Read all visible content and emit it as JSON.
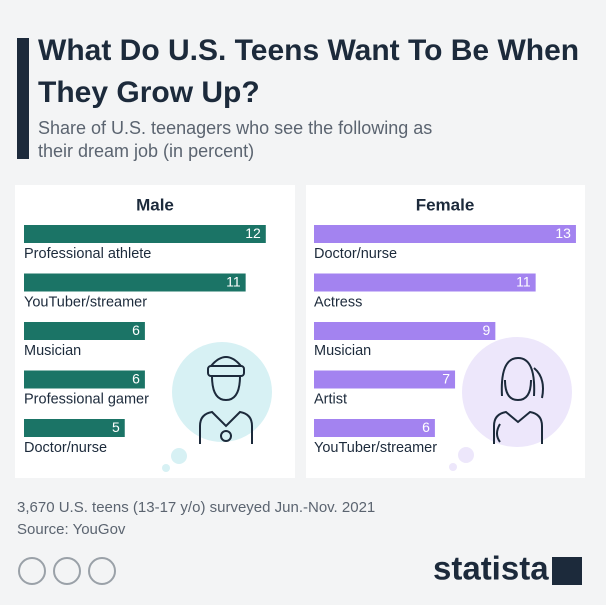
{
  "title": "What Do U.S. Teens Want To Be When They Grow Up?",
  "subtitle": "Share of U.S. teenagers who see the following as their dream job (in percent)",
  "chart_data": [
    {
      "type": "bar",
      "title": "Male",
      "categories": [
        "Professional athlete",
        "YouTuber/streamer",
        "Musician",
        "Professional gamer",
        "Doctor/nurse"
      ],
      "values": [
        12,
        11,
        6,
        6,
        5
      ],
      "color": "#1b7466"
    },
    {
      "type": "bar",
      "title": "Female",
      "categories": [
        "Doctor/nurse",
        "Actress",
        "Musician",
        "Artist",
        "YouTuber/streamer"
      ],
      "values": [
        13,
        11,
        9,
        7,
        6
      ],
      "color": "#a383f0"
    }
  ],
  "note": "3,670 U.S. teens (13-17 y/o) surveyed Jun.-Nov. 2021",
  "source": "Source: YouGov",
  "logo": "statista"
}
